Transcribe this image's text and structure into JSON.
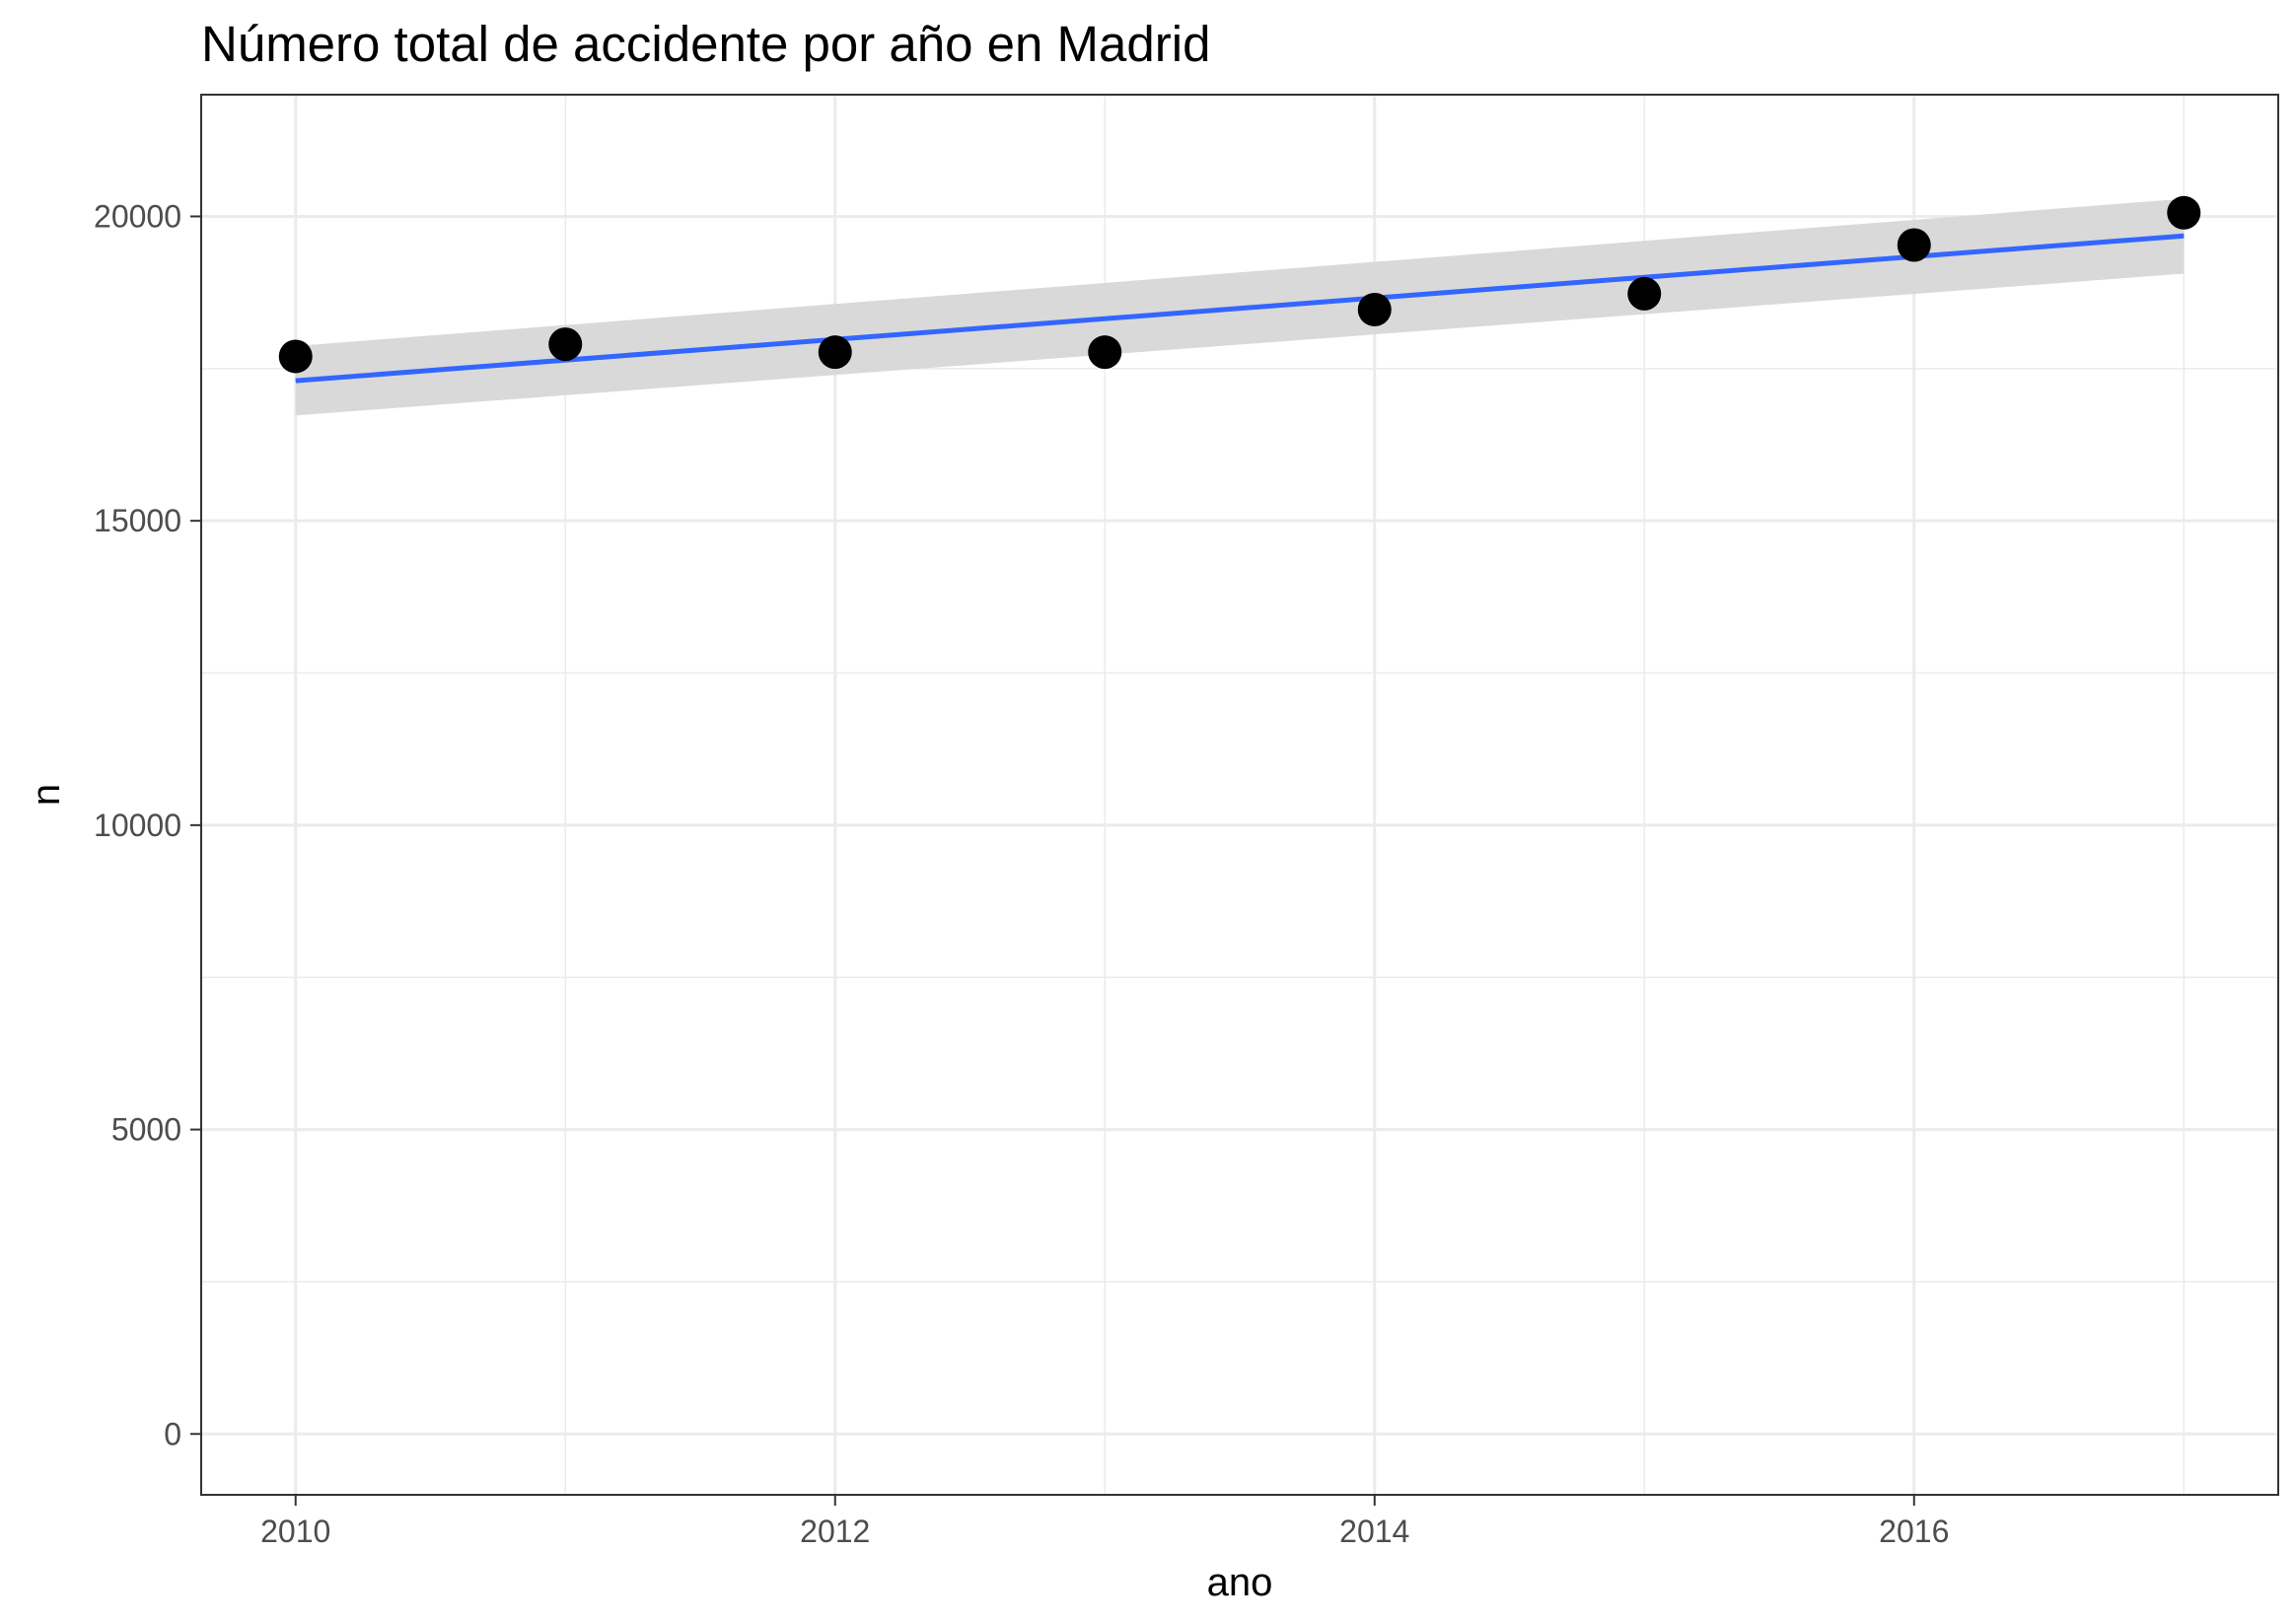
{
  "chart_data": {
    "type": "scatter",
    "title": "Número total de accidente por año en Madrid",
    "xlabel": "ano",
    "ylabel": "n",
    "xlim": [
      2009.65,
      2017.35
    ],
    "ylim": [
      -1000,
      22000
    ],
    "x_ticks": [
      2010,
      2012,
      2014,
      2016
    ],
    "x_tick_labels": [
      "2010",
      "2012",
      "2014",
      "2016"
    ],
    "x_minor_ticks": [
      2011,
      2013,
      2015,
      2017
    ],
    "y_ticks": [
      0,
      5000,
      10000,
      15000,
      20000
    ],
    "y_tick_labels": [
      "0",
      "5000",
      "10000",
      "15000",
      "20000"
    ],
    "y_minor_ticks": [
      2500,
      7500,
      12500,
      17500
    ],
    "grid": true,
    "x": [
      2010,
      2011,
      2012,
      2013,
      2014,
      2015,
      2016,
      2017
    ],
    "y": [
      17700,
      17900,
      17770,
      17770,
      18470,
      18730,
      19530,
      20060
    ],
    "trend": {
      "method": "linear",
      "x": [
        2010,
        2017
      ],
      "y": [
        17300,
        19680
      ],
      "band_lower": [
        16730,
        19060
      ],
      "band_upper": [
        17870,
        20290
      ]
    },
    "colors": {
      "points": "#000000",
      "trend_line": "#3366FF",
      "band": "#d9d9d9",
      "grid": "#ebebeb",
      "panel_border": "#333333"
    }
  }
}
